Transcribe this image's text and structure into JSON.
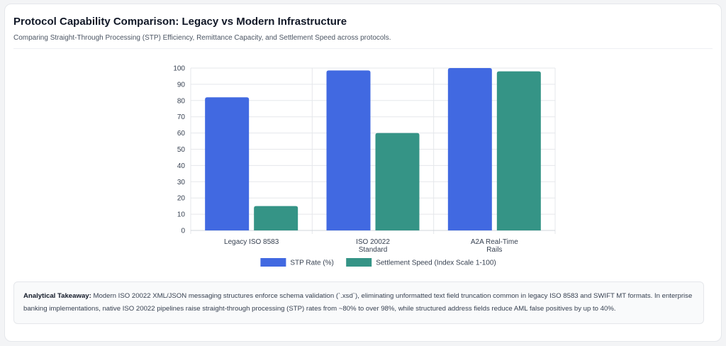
{
  "header": {
    "title": "Protocol Capability Comparison: Legacy vs Modern Infrastructure",
    "subtitle": "Comparing Straight-Through Processing (STP) Efficiency, Remittance Capacity, and Settlement Speed across protocols."
  },
  "chart_data": {
    "type": "bar",
    "categories": [
      [
        "Legacy ISO 8583"
      ],
      [
        "ISO 20022",
        "Standard"
      ],
      [
        "A2A Real-Time",
        "Rails"
      ]
    ],
    "series": [
      {
        "name": "STP Rate (%)",
        "values": [
          82,
          98.5,
          100
        ],
        "color": "#4169e1"
      },
      {
        "name": "Settlement Speed (Index Scale 1-100)",
        "values": [
          15,
          60,
          98
        ],
        "color": "#359486"
      }
    ],
    "ylim": [
      0,
      100
    ],
    "yticks": [
      0,
      10,
      20,
      30,
      40,
      50,
      60,
      70,
      80,
      90,
      100
    ],
    "grid": true,
    "legend_position": "bottom"
  },
  "takeaway": {
    "label": "Analytical Takeaway:",
    "text": "Modern ISO 20022 XML/JSON messaging structures enforce schema validation (`.xsd`), eliminating unformatted text field truncation common in legacy ISO 8583 and SWIFT MT formats. In enterprise banking implementations, native ISO 20022 pipelines raise straight-through processing (STP) rates from ~80% to over 98%, while structured address fields reduce AML false positives by up to 40%."
  }
}
